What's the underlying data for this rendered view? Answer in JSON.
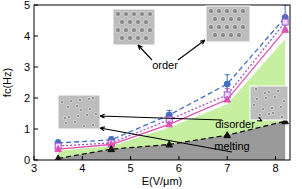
{
  "chart_data": {
    "type": "line",
    "x_label": "E(V/μm)",
    "y_label": "fc(Hz)",
    "annotations": [
      "order",
      "disorder",
      "melting"
    ],
    "x": [
      3.5,
      4.6,
      5.8,
      7.0,
      8.2
    ],
    "xlim": [
      3,
      8.3
    ],
    "xticks": [
      3,
      4,
      5,
      6,
      7,
      8
    ],
    "ylim": [
      0,
      5
    ],
    "yticks": [
      0,
      1,
      2,
      3,
      4,
      5
    ],
    "grid": false,
    "series": [
      {
        "type": "area",
        "color": "#c6f0a0",
        "values": [
          0.3,
          0.45,
          1.05,
          1.8,
          3.9
        ]
      },
      {
        "type": "area",
        "color": "#9a9a9a",
        "values": [
          0.05,
          0.35,
          0.5,
          0.8,
          1.25
        ]
      },
      {
        "type": "line",
        "color": "#3f6fc4",
        "marker": "circle",
        "line_style": "dashed",
        "values": [
          0.55,
          0.65,
          1.45,
          2.45,
          4.6
        ],
        "errors": [
          0.1,
          0.1,
          0.15,
          0.3,
          0.4
        ]
      },
      {
        "type": "line",
        "color": "#a050c8",
        "marker": "square",
        "line_style": "dotted",
        "values": [
          0.45,
          0.55,
          1.3,
          2.1,
          4.45
        ],
        "errors": [
          0.08,
          0.08,
          0.1,
          0.2,
          0.2
        ]
      },
      {
        "type": "line",
        "color": "#e050b0",
        "marker": "triangle",
        "line_style": "solid",
        "values": [
          0.35,
          0.5,
          1.15,
          1.95,
          4.2
        ]
      },
      {
        "type": "line",
        "color": "#111111",
        "marker": "triangle",
        "line_style": "dashed",
        "values": [
          0.05,
          0.35,
          0.5,
          0.8,
          1.25
        ]
      }
    ]
  }
}
